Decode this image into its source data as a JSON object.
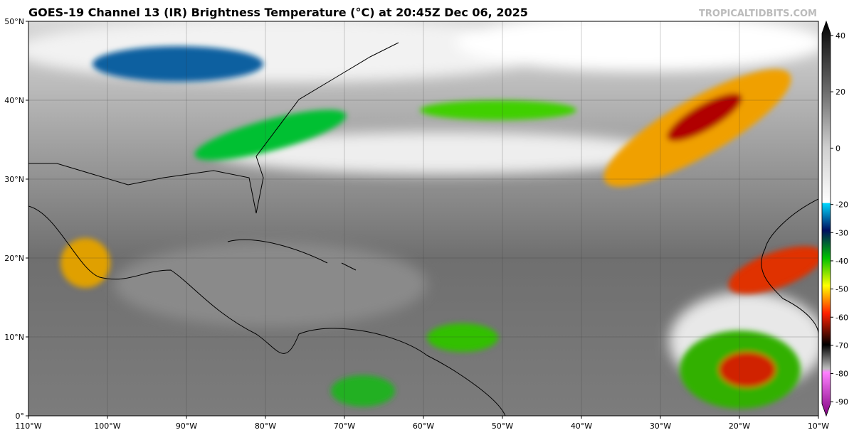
{
  "header": {
    "title": "GOES-19 Channel 13 (IR) Brightness Temperature (°C) at 20:45Z Dec 06, 2025",
    "credit": "TROPICALTIDBITS.COM"
  },
  "map": {
    "lon_range": [
      -110,
      -10
    ],
    "lat_range": [
      0,
      50
    ],
    "lon_ticks": [
      {
        "value": -110,
        "label": "110°W"
      },
      {
        "value": -100,
        "label": "100°W"
      },
      {
        "value": -90,
        "label": "90°W"
      },
      {
        "value": -80,
        "label": "80°W"
      },
      {
        "value": -70,
        "label": "70°W"
      },
      {
        "value": -60,
        "label": "60°W"
      },
      {
        "value": -50,
        "label": "50°W"
      },
      {
        "value": -40,
        "label": "40°W"
      },
      {
        "value": -30,
        "label": "30°W"
      },
      {
        "value": -20,
        "label": "20°W"
      },
      {
        "value": -10,
        "label": "10°W"
      }
    ],
    "lat_ticks": [
      {
        "value": 0,
        "label": "0°"
      },
      {
        "value": 10,
        "label": "10°N"
      },
      {
        "value": 20,
        "label": "20°N"
      },
      {
        "value": 30,
        "label": "30°N"
      },
      {
        "value": 40,
        "label": "40°N"
      },
      {
        "value": 50,
        "label": "50°N"
      }
    ]
  },
  "colorbar": {
    "range": [
      -95,
      45
    ],
    "ticks": [
      40,
      20,
      0,
      -20,
      -30,
      -40,
      -50,
      -60,
      -70,
      -80,
      -90
    ]
  }
}
